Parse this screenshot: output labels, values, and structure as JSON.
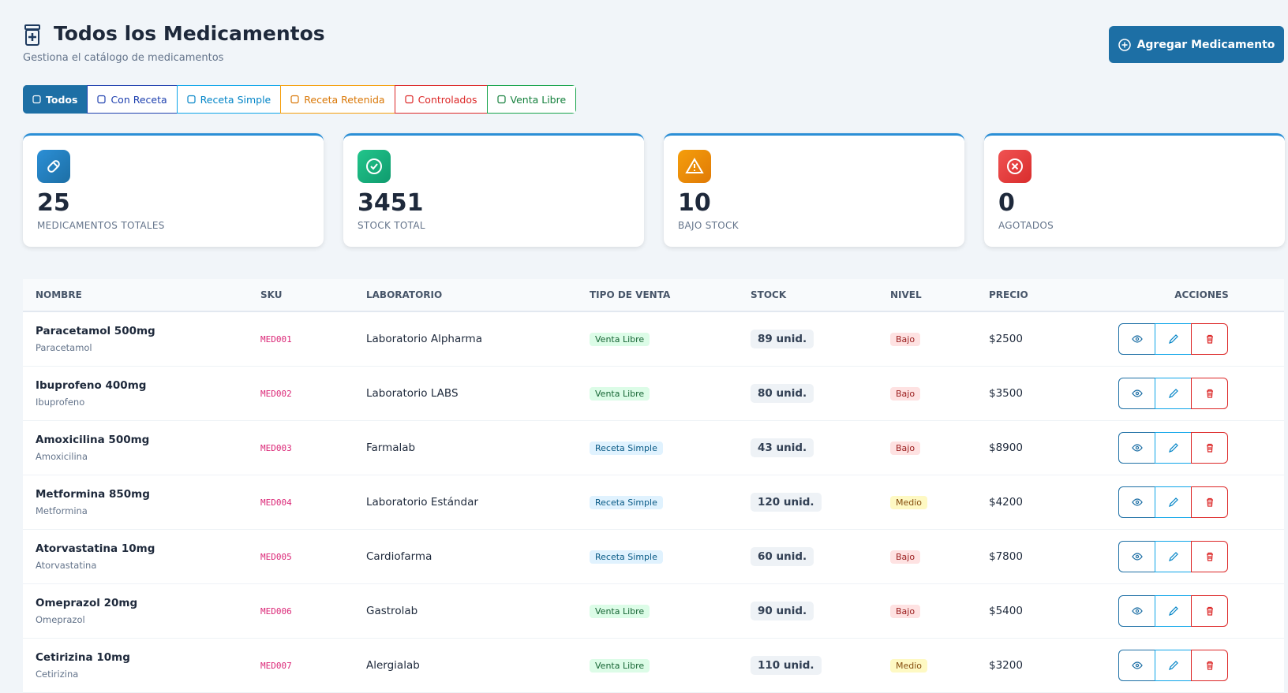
{
  "header": {
    "title": "Todos los Medicamentos",
    "subtitle": "Gestiona el catálogo de medicamentos",
    "add_button": "Agregar Medicamento"
  },
  "filters": [
    "Todos",
    "Con Receta",
    "Receta Simple",
    "Receta Retenida",
    "Controlados",
    "Venta Libre"
  ],
  "stats": [
    {
      "value": 25,
      "label": "MEDICAMENTOS TOTALES"
    },
    {
      "value": 3451,
      "label": "STOCK TOTAL"
    },
    {
      "value": 10,
      "label": "BAJO STOCK"
    },
    {
      "value": 0,
      "label": "AGOTADOS"
    }
  ],
  "table": {
    "columns": [
      "NOMBRE",
      "SKU",
      "LABORATORIO",
      "TIPO DE VENTA",
      "STOCK",
      "NIVEL",
      "PRECIO",
      "ACCIONES"
    ],
    "rows": [
      {
        "name": "Paracetamol 500mg",
        "generic": "Paracetamol",
        "sku": "MED001",
        "lab": "Laboratorio Alpharma",
        "type": "Venta Libre",
        "stock": "89 unid.",
        "level": "Bajo",
        "price": "$2500"
      },
      {
        "name": "Ibuprofeno 400mg",
        "generic": "Ibuprofeno",
        "sku": "MED002",
        "lab": "Laboratorio LABS",
        "type": "Venta Libre",
        "stock": "80 unid.",
        "level": "Bajo",
        "price": "$3500"
      },
      {
        "name": "Amoxicilina 500mg",
        "generic": "Amoxicilina",
        "sku": "MED003",
        "lab": "Farmalab",
        "type": "Receta Simple",
        "stock": "43 unid.",
        "level": "Bajo",
        "price": "$8900"
      },
      {
        "name": "Metformina 850mg",
        "generic": "Metformina",
        "sku": "MED004",
        "lab": "Laboratorio Estándar",
        "type": "Receta Simple",
        "stock": "120 unid.",
        "level": "Medio",
        "price": "$4200"
      },
      {
        "name": "Atorvastatina 10mg",
        "generic": "Atorvastatina",
        "sku": "MED005",
        "lab": "Cardiofarma",
        "type": "Receta Simple",
        "stock": "60 unid.",
        "level": "Bajo",
        "price": "$7800"
      },
      {
        "name": "Omeprazol 20mg",
        "generic": "Omeprazol",
        "sku": "MED006",
        "lab": "Gastrolab",
        "type": "Venta Libre",
        "stock": "90 unid.",
        "level": "Bajo",
        "price": "$5400"
      },
      {
        "name": "Cetirizina 10mg",
        "generic": "Cetirizina",
        "sku": "MED007",
        "lab": "Alergialab",
        "type": "Venta Libre",
        "stock": "110 unid.",
        "level": "Medio",
        "price": "$3200"
      }
    ]
  }
}
